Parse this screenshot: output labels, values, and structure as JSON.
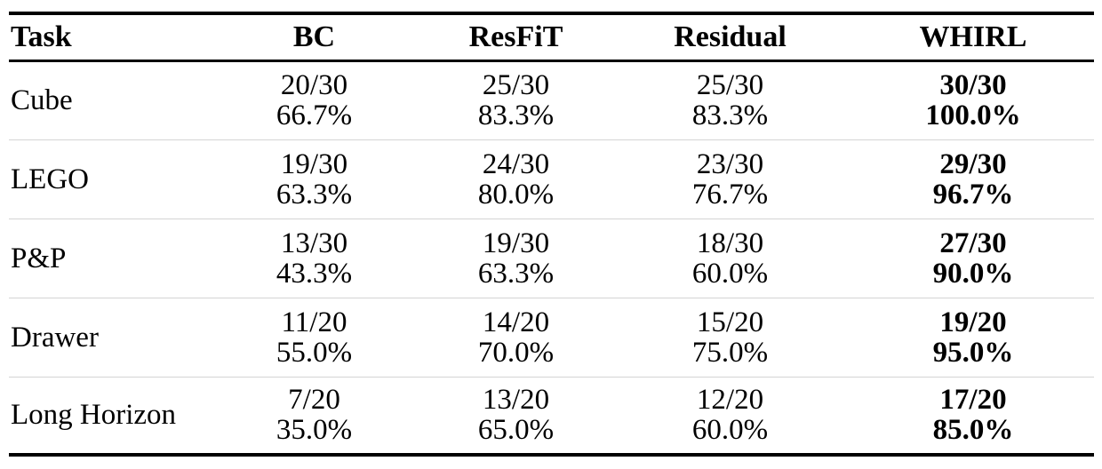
{
  "columns": [
    "Task",
    "BC",
    "ResFiT",
    "Residual",
    "WHIRL"
  ],
  "rows": [
    {
      "task": "Cube",
      "cells": [
        {
          "count": "20/30",
          "pct": "66.7%"
        },
        {
          "count": "25/30",
          "pct": "83.3%"
        },
        {
          "count": "25/30",
          "pct": "83.3%"
        },
        {
          "count": "30/30",
          "pct": "100.0%"
        }
      ]
    },
    {
      "task": "LEGO",
      "cells": [
        {
          "count": "19/30",
          "pct": "63.3%"
        },
        {
          "count": "24/30",
          "pct": "80.0%"
        },
        {
          "count": "23/30",
          "pct": "76.7%"
        },
        {
          "count": "29/30",
          "pct": "96.7%"
        }
      ]
    },
    {
      "task": "P&P",
      "cells": [
        {
          "count": "13/30",
          "pct": "43.3%"
        },
        {
          "count": "19/30",
          "pct": "63.3%"
        },
        {
          "count": "18/30",
          "pct": "60.0%"
        },
        {
          "count": "27/30",
          "pct": "90.0%"
        }
      ]
    },
    {
      "task": "Drawer",
      "cells": [
        {
          "count": "11/20",
          "pct": "55.0%"
        },
        {
          "count": "14/20",
          "pct": "70.0%"
        },
        {
          "count": "15/20",
          "pct": "75.0%"
        },
        {
          "count": "19/20",
          "pct": "95.0%"
        }
      ]
    },
    {
      "task": "Long Horizon",
      "cells": [
        {
          "count": "7/20",
          "pct": "35.0%"
        },
        {
          "count": "13/20",
          "pct": "65.0%"
        },
        {
          "count": "12/20",
          "pct": "60.0%"
        },
        {
          "count": "17/20",
          "pct": "85.0%"
        }
      ]
    }
  ]
}
